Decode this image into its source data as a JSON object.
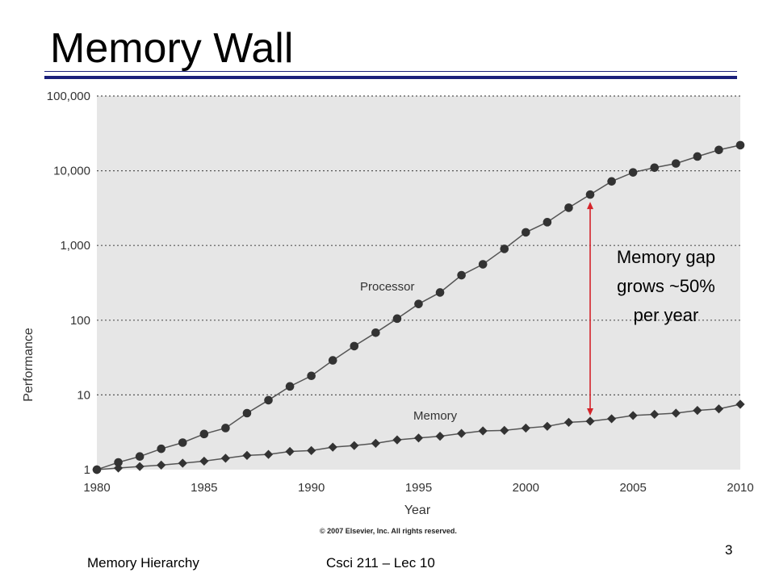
{
  "slide": {
    "title": "Memory Wall",
    "footer_left": "Memory Hierarchy",
    "footer_center": "Csci 211 – Lec 10",
    "page_number": "3"
  },
  "chart_data": {
    "type": "line",
    "xlabel": "Year",
    "ylabel": "Performance",
    "y_scale": "log",
    "ylim": [
      1,
      100000
    ],
    "xlim": [
      1980,
      2010
    ],
    "x_ticks": [
      "1980",
      "1985",
      "1990",
      "1995",
      "2000",
      "2005",
      "2010"
    ],
    "y_ticks": [
      "1",
      "10",
      "100",
      "1,000",
      "10,000",
      "100,000"
    ],
    "grid": "horizontal dotted",
    "copyright": "© 2007 Elsevier, Inc. All rights reserved.",
    "x": [
      1980,
      1981,
      1982,
      1983,
      1984,
      1985,
      1986,
      1987,
      1988,
      1989,
      1990,
      1991,
      1992,
      1993,
      1994,
      1995,
      1996,
      1997,
      1998,
      1999,
      2000,
      2001,
      2002,
      2003,
      2004,
      2005,
      2006,
      2007,
      2008,
      2009,
      2010
    ],
    "series": [
      {
        "name": "Processor",
        "marker": "circle",
        "values": [
          1,
          1.25,
          1.5,
          1.9,
          2.3,
          3.0,
          3.6,
          5.7,
          8.5,
          13,
          18,
          29,
          45,
          68,
          105,
          165,
          235,
          400,
          560,
          900,
          1500,
          2050,
          3200,
          4800,
          7200,
          9500,
          11000,
          12500,
          15500,
          19000,
          22000
        ]
      },
      {
        "name": "Memory",
        "marker": "diamond",
        "values": [
          1,
          1.05,
          1.1,
          1.15,
          1.22,
          1.3,
          1.42,
          1.55,
          1.6,
          1.75,
          1.8,
          2.0,
          2.1,
          2.25,
          2.5,
          2.65,
          2.8,
          3.05,
          3.3,
          3.35,
          3.6,
          3.8,
          4.3,
          4.45,
          4.8,
          5.3,
          5.5,
          5.7,
          6.2,
          6.5,
          7.5
        ]
      }
    ],
    "annotation": {
      "lines": [
        "Memory gap",
        "grows ~50%",
        "per year"
      ],
      "x": 2003,
      "color": "#d4242a"
    }
  }
}
